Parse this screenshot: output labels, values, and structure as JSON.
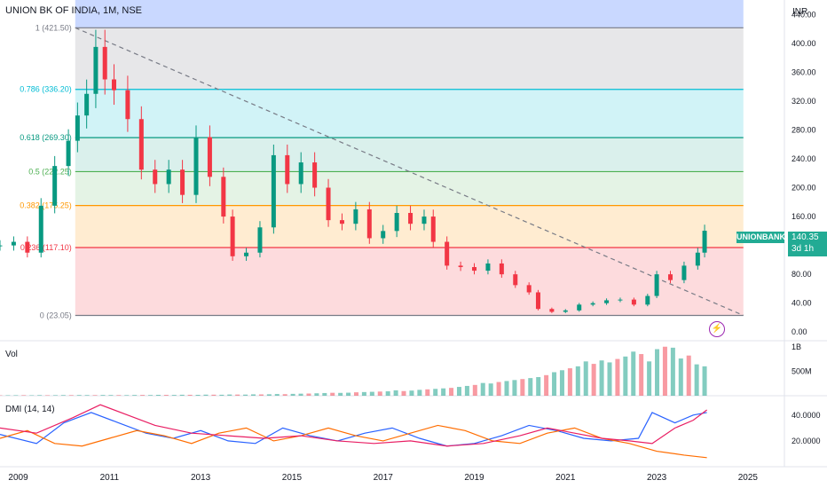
{
  "header": {
    "title": "UNION BK OF INDIA, 1M, NSE"
  },
  "axis": {
    "unit": "INR"
  },
  "chart_data": {
    "type": "candlestick",
    "title": "UNION BK OF INDIA, 1M, NSE",
    "y_ticks": [
      "440.00",
      "400.00",
      "360.00",
      "320.00",
      "280.00",
      "240.00",
      "200.00",
      "160.00",
      "120.00",
      "80.00",
      "40.00",
      "0.00"
    ],
    "y_tick_values": [
      440,
      400,
      360,
      320,
      280,
      240,
      200,
      160,
      120,
      80,
      40,
      0
    ],
    "ylim": [
      -12,
      460
    ],
    "x_ticks": [
      "2009",
      "2011",
      "2013",
      "2015",
      "2017",
      "2019",
      "2021",
      "2023",
      "2025"
    ],
    "x_tick_values": [
      2009,
      2011,
      2013,
      2015,
      2017,
      2019,
      2021,
      2023,
      2025
    ],
    "xlim": [
      2008.6,
      2025.8
    ],
    "fib_levels": [
      {
        "label": "1 (421.50)",
        "value": 421.5,
        "color": "#787b86"
      },
      {
        "label": "0.786 (336.20)",
        "value": 336.2,
        "color": "#00bcd4"
      },
      {
        "label": "0.618 (269.30)",
        "value": 269.3,
        "color": "#089981"
      },
      {
        "label": "0.5 (222.25)",
        "value": 222.25,
        "color": "#4caf50"
      },
      {
        "label": "0.382 (175.25)",
        "value": 175.25,
        "color": "#ff9800"
      },
      {
        "label": "0.236 (117.10)",
        "value": 117.1,
        "color": "#f23645"
      },
      {
        "label": "0 (23.05)",
        "value": 23.05,
        "color": "#787b86"
      }
    ],
    "fib_range": {
      "start": 2010.25,
      "end": 2024.9
    },
    "trendline": {
      "from": [
        2010.25,
        421.5
      ],
      "to": [
        2024.9,
        23.05
      ]
    },
    "series_points": [
      [
        2008.6,
        120
      ],
      [
        2008.9,
        125
      ],
      [
        2009.2,
        110
      ],
      [
        2009.5,
        175
      ],
      [
        2009.8,
        230
      ],
      [
        2010.1,
        265
      ],
      [
        2010.3,
        300
      ],
      [
        2010.5,
        330
      ],
      [
        2010.7,
        395
      ],
      [
        2010.9,
        350
      ],
      [
        2011.1,
        335
      ],
      [
        2011.4,
        295
      ],
      [
        2011.7,
        225
      ],
      [
        2012.0,
        205
      ],
      [
        2012.3,
        225
      ],
      [
        2012.6,
        190
      ],
      [
        2012.9,
        270
      ],
      [
        2013.2,
        215
      ],
      [
        2013.5,
        160
      ],
      [
        2013.7,
        105
      ],
      [
        2014.0,
        110
      ],
      [
        2014.3,
        145
      ],
      [
        2014.6,
        245
      ],
      [
        2014.9,
        205
      ],
      [
        2015.2,
        235
      ],
      [
        2015.5,
        200
      ],
      [
        2015.8,
        155
      ],
      [
        2016.1,
        150
      ],
      [
        2016.4,
        170
      ],
      [
        2016.7,
        130
      ],
      [
        2017.0,
        140
      ],
      [
        2017.3,
        165
      ],
      [
        2017.6,
        150
      ],
      [
        2017.9,
        160
      ],
      [
        2018.1,
        125
      ],
      [
        2018.4,
        92
      ],
      [
        2018.7,
        90
      ],
      [
        2019.0,
        85
      ],
      [
        2019.3,
        95
      ],
      [
        2019.6,
        80
      ],
      [
        2019.9,
        65
      ],
      [
        2020.2,
        55
      ],
      [
        2020.4,
        32
      ],
      [
        2020.7,
        28
      ],
      [
        2021.0,
        30
      ],
      [
        2021.3,
        38
      ],
      [
        2021.6,
        40
      ],
      [
        2021.9,
        44
      ],
      [
        2022.2,
        45
      ],
      [
        2022.5,
        38
      ],
      [
        2022.8,
        50
      ],
      [
        2023.0,
        80
      ],
      [
        2023.3,
        72
      ],
      [
        2023.6,
        92
      ],
      [
        2023.9,
        110
      ],
      [
        2024.05,
        140.35
      ]
    ],
    "last_price": {
      "symbol": "UNIONBANK",
      "value": "140.35",
      "time_left": "3d 1h"
    },
    "volume": {
      "label": "Vol",
      "ticks": [
        "1B",
        "500M"
      ],
      "tick_values": [
        1000,
        500
      ],
      "ylim": [
        0,
        1050
      ],
      "values": [
        8,
        9,
        10,
        11,
        9,
        12,
        10,
        11,
        13,
        12,
        14,
        13,
        12,
        15,
        14,
        13,
        12,
        15,
        16,
        14,
        18,
        17,
        16,
        20,
        19,
        18,
        22,
        21,
        20,
        25,
        24,
        23,
        28,
        27,
        30,
        35,
        32,
        38,
        42,
        45,
        50,
        55,
        60,
        58,
        62,
        70,
        75,
        80,
        85,
        90,
        110,
        95,
        105,
        120,
        130,
        140,
        150,
        160,
        180,
        200,
        220,
        260,
        250,
        280,
        300,
        320,
        340,
        360,
        380,
        420,
        480,
        520,
        560,
        600,
        700,
        650,
        720,
        680,
        750,
        800,
        900,
        850,
        700,
        950,
        1000,
        980,
        760,
        820,
        640,
        600
      ]
    },
    "dmi": {
      "label": "DMI (14, 14)",
      "ticks": [
        "40.0000",
        "20.0000"
      ],
      "tick_values": [
        40,
        20
      ],
      "ylim": [
        0,
        55
      ],
      "series": [
        {
          "color": "#2962ff",
          "points": [
            [
              2008.6,
              25
            ],
            [
              2009.4,
              18
            ],
            [
              2010.0,
              34
            ],
            [
              2010.6,
              42
            ],
            [
              2011.2,
              34
            ],
            [
              2011.8,
              26
            ],
            [
              2012.4,
              22
            ],
            [
              2013.0,
              28
            ],
            [
              2013.6,
              20
            ],
            [
              2014.2,
              18
            ],
            [
              2014.8,
              30
            ],
            [
              2015.4,
              24
            ],
            [
              2016.0,
              20
            ],
            [
              2016.6,
              26
            ],
            [
              2017.2,
              30
            ],
            [
              2017.8,
              22
            ],
            [
              2018.4,
              16
            ],
            [
              2019.0,
              18
            ],
            [
              2019.6,
              24
            ],
            [
              2020.2,
              32
            ],
            [
              2020.8,
              28
            ],
            [
              2021.4,
              22
            ],
            [
              2022.0,
              20
            ],
            [
              2022.6,
              22
            ],
            [
              2022.9,
              42
            ],
            [
              2023.4,
              34
            ],
            [
              2023.8,
              40
            ],
            [
              2024.1,
              42
            ]
          ]
        },
        {
          "color": "#ff6d00",
          "points": [
            [
              2008.6,
              22
            ],
            [
              2009.2,
              28
            ],
            [
              2009.8,
              18
            ],
            [
              2010.4,
              16
            ],
            [
              2011.0,
              22
            ],
            [
              2011.6,
              28
            ],
            [
              2012.2,
              24
            ],
            [
              2012.8,
              18
            ],
            [
              2013.4,
              26
            ],
            [
              2014.0,
              30
            ],
            [
              2014.6,
              20
            ],
            [
              2015.2,
              24
            ],
            [
              2015.8,
              30
            ],
            [
              2016.4,
              24
            ],
            [
              2017.0,
              20
            ],
            [
              2017.6,
              26
            ],
            [
              2018.2,
              32
            ],
            [
              2018.8,
              28
            ],
            [
              2019.4,
              20
            ],
            [
              2020.0,
              18
            ],
            [
              2020.6,
              26
            ],
            [
              2021.2,
              30
            ],
            [
              2021.8,
              22
            ],
            [
              2022.4,
              18
            ],
            [
              2023.0,
              12
            ],
            [
              2023.6,
              9
            ],
            [
              2024.1,
              7
            ]
          ]
        },
        {
          "color": "#e91e63",
          "points": [
            [
              2008.6,
              30
            ],
            [
              2009.4,
              26
            ],
            [
              2010.2,
              38
            ],
            [
              2010.8,
              48
            ],
            [
              2011.4,
              40
            ],
            [
              2012.0,
              32
            ],
            [
              2012.8,
              26
            ],
            [
              2013.6,
              24
            ],
            [
              2014.4,
              22
            ],
            [
              2015.2,
              24
            ],
            [
              2016.0,
              20
            ],
            [
              2016.8,
              18
            ],
            [
              2017.6,
              20
            ],
            [
              2018.4,
              16
            ],
            [
              2019.2,
              18
            ],
            [
              2020.0,
              24
            ],
            [
              2020.6,
              30
            ],
            [
              2021.2,
              26
            ],
            [
              2021.8,
              22
            ],
            [
              2022.4,
              20
            ],
            [
              2022.9,
              18
            ],
            [
              2023.4,
              30
            ],
            [
              2023.8,
              36
            ],
            [
              2024.1,
              44
            ]
          ]
        }
      ]
    }
  }
}
